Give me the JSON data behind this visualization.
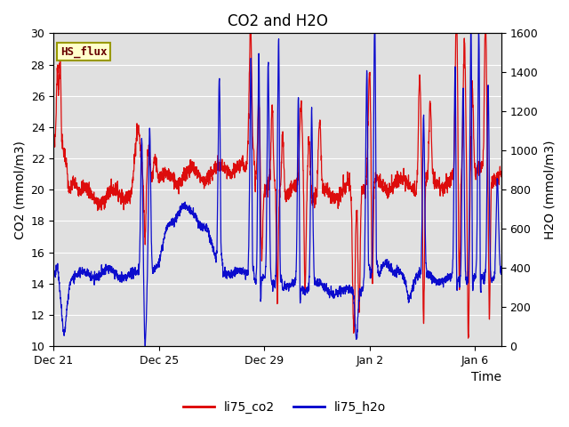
{
  "title": "CO2 and H2O",
  "xlabel": "Time",
  "ylabel_left": "CO2 (mmol/m3)",
  "ylabel_right": "H2O (mmol/m3)",
  "ylim_left": [
    10,
    30
  ],
  "ylim_right": [
    0,
    1600
  ],
  "yticks_left": [
    10,
    12,
    14,
    16,
    18,
    20,
    22,
    24,
    26,
    28,
    30
  ],
  "yticks_right": [
    0,
    200,
    400,
    600,
    800,
    1000,
    1200,
    1400,
    1600
  ],
  "xtick_labels": [
    "Dec 21",
    "Dec 25",
    "Dec 29",
    "Jan 2",
    "Jan 6"
  ],
  "xlim": [
    0,
    17
  ],
  "xtick_pos": [
    0,
    4,
    8,
    12,
    16
  ],
  "color_co2": "#dd0000",
  "color_h2o": "#0000cc",
  "legend_co2": "li75_co2",
  "legend_h2o": "li75_h2o",
  "box_label": "HS_flux",
  "box_facecolor": "#ffffcc",
  "box_edgecolor": "#999900",
  "box_text_color": "#660000",
  "background_color": "#e0e0e0",
  "grid_color": "#ffffff",
  "title_fontsize": 12,
  "axis_label_fontsize": 10,
  "tick_label_fontsize": 9,
  "line_width": 0.9,
  "legend_fontsize": 10
}
